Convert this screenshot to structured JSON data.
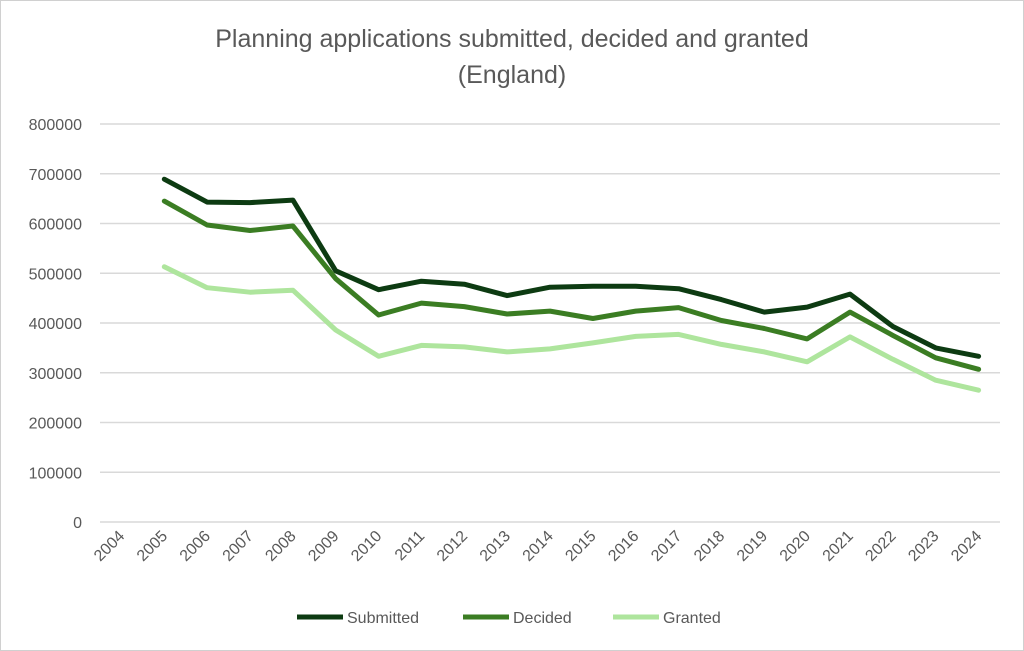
{
  "chart_data": {
    "type": "line",
    "title": "Planning applications submitted, decided and granted",
    "subtitle": "(England)",
    "xlabel": "",
    "ylabel": "",
    "categories": [
      "2004",
      "2005",
      "2006",
      "2007",
      "2008",
      "2009",
      "2010",
      "2011",
      "2012",
      "2013",
      "2014",
      "2015",
      "2016",
      "2017",
      "2018",
      "2019",
      "2020",
      "2021",
      "2022",
      "2023",
      "2024"
    ],
    "yticks": [
      "0",
      "100000",
      "200000",
      "300000",
      "400000",
      "500000",
      "600000",
      "700000",
      "800000"
    ],
    "ylim": [
      0,
      800000
    ],
    "grid": true,
    "legend_position": "bottom",
    "series": [
      {
        "name": "Submitted",
        "color": "#0d3b12",
        "values": [
          null,
          689000,
          643000,
          642000,
          647000,
          505000,
          467000,
          484000,
          478000,
          455000,
          472000,
          474000,
          474000,
          469000,
          447000,
          422000,
          432000,
          458000,
          393000,
          350000,
          333000
        ]
      },
      {
        "name": "Decided",
        "color": "#3b7d23",
        "values": [
          null,
          645000,
          597000,
          586000,
          595000,
          489000,
          416000,
          440000,
          433000,
          418000,
          424000,
          409000,
          424000,
          431000,
          405000,
          389000,
          368000,
          422000,
          375000,
          330000,
          307000
        ]
      },
      {
        "name": "Granted",
        "color": "#aee59d",
        "values": [
          null,
          513000,
          471000,
          462000,
          466000,
          386000,
          333000,
          355000,
          352000,
          342000,
          348000,
          360000,
          373000,
          377000,
          357000,
          342000,
          322000,
          372000,
          327000,
          285000,
          265000
        ]
      }
    ]
  }
}
